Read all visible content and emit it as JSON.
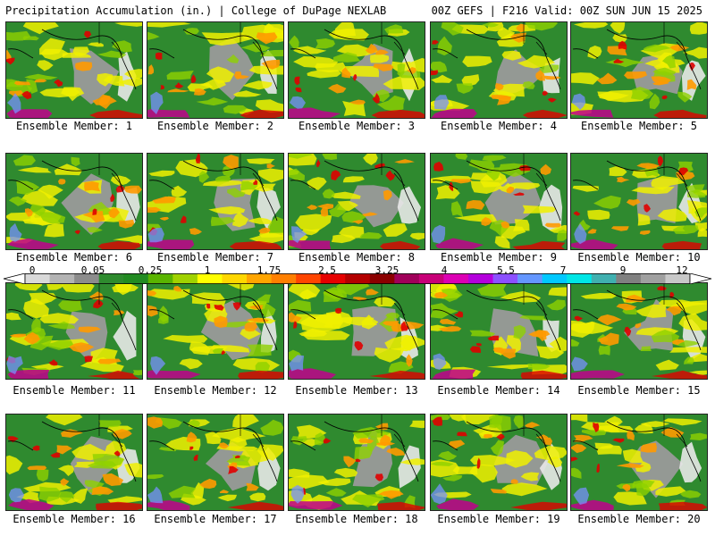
{
  "header": {
    "left": "Precipitation Accumulation (in.) | College of DuPage NEXLAB",
    "right": "00Z GEFS | F216 Valid: 00Z SUN JUN 15 2025"
  },
  "members": [
    "Ensemble Member: 1",
    "Ensemble Member: 2",
    "Ensemble Member: 3",
    "Ensemble Member: 4",
    "Ensemble Member: 5",
    "Ensemble Member: 6",
    "Ensemble Member: 7",
    "Ensemble Member: 8",
    "Ensemble Member: 9",
    "Ensemble Member: 10",
    "Ensemble Member: 11",
    "Ensemble Member: 12",
    "Ensemble Member: 13",
    "Ensemble Member: 14",
    "Ensemble Member: 15",
    "Ensemble Member: 16",
    "Ensemble Member: 17",
    "Ensemble Member: 18",
    "Ensemble Member: 19",
    "Ensemble Member: 20"
  ],
  "colorbar": {
    "tick_labels": [
      "0",
      "0.05",
      "0.25",
      "1",
      "1.75",
      "2.5",
      "3.25",
      "4",
      "5.5",
      "7",
      "9",
      "12"
    ],
    "colors": [
      "#d9d9d9",
      "#b3b3b3",
      "#8c8c8c",
      "#2e8b2e",
      "#228b22",
      "#5ab400",
      "#a0d200",
      "#ffff00",
      "#ffd700",
      "#ffa500",
      "#ff7f00",
      "#ff4500",
      "#e60000",
      "#b40000",
      "#8b0000",
      "#a0005a",
      "#c80078",
      "#dc00b4",
      "#b400dc",
      "#8c50ff",
      "#6496ff",
      "#00c8ff",
      "#00e6e6",
      "#40b0b0",
      "#808080",
      "#a0a0a0",
      "#c8c8c8"
    ],
    "map_colors": {
      "land": "#2f8a2f",
      "dry": "#9a9a9a",
      "light": "#e8e8e8",
      "yellow": "#f0f000",
      "lightgreen": "#8fd100",
      "orange": "#ff9a00",
      "red": "#e00000",
      "magenta": "#c0008c",
      "blue": "#7890ff"
    }
  }
}
